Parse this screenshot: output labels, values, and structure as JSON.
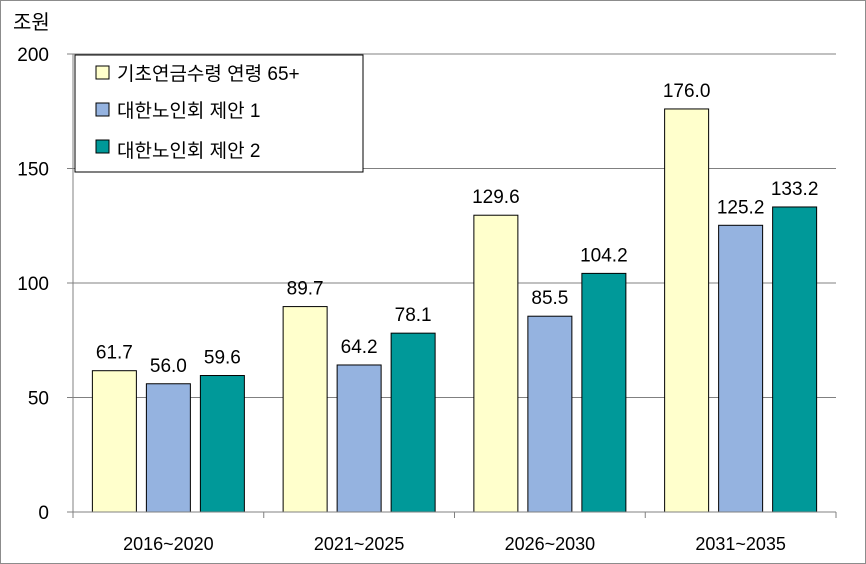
{
  "chart_data": {
    "type": "bar",
    "unit_label": "조원",
    "categories": [
      "2016~2020",
      "2021~2025",
      "2026~2030",
      "2031~2035"
    ],
    "series": [
      {
        "name": "기초연금수령 연령 65+",
        "values": [
          61.7,
          89.7,
          129.6,
          176.0
        ],
        "labels": [
          "61.7",
          "89.7",
          "129.6",
          "176.0"
        ],
        "color": "#FFFFCC"
      },
      {
        "name": "대한노인회 제안 1",
        "values": [
          56.0,
          64.2,
          85.5,
          125.2
        ],
        "labels": [
          "56.0",
          "64.2",
          "85.5",
          "125.2"
        ],
        "color": "#95B3E0"
      },
      {
        "name": "대한노인회 제안 2",
        "values": [
          59.6,
          78.1,
          104.2,
          133.2
        ],
        "labels": [
          "59.6",
          "78.1",
          "104.2",
          "133.2"
        ],
        "color": "#009999"
      }
    ],
    "ylim": [
      0,
      200
    ],
    "yticks": [
      "0",
      "50",
      "100",
      "150",
      "200"
    ],
    "grid": true,
    "legend_position": "top-left",
    "axis_color": "#808080",
    "grid_color": "#808080"
  }
}
